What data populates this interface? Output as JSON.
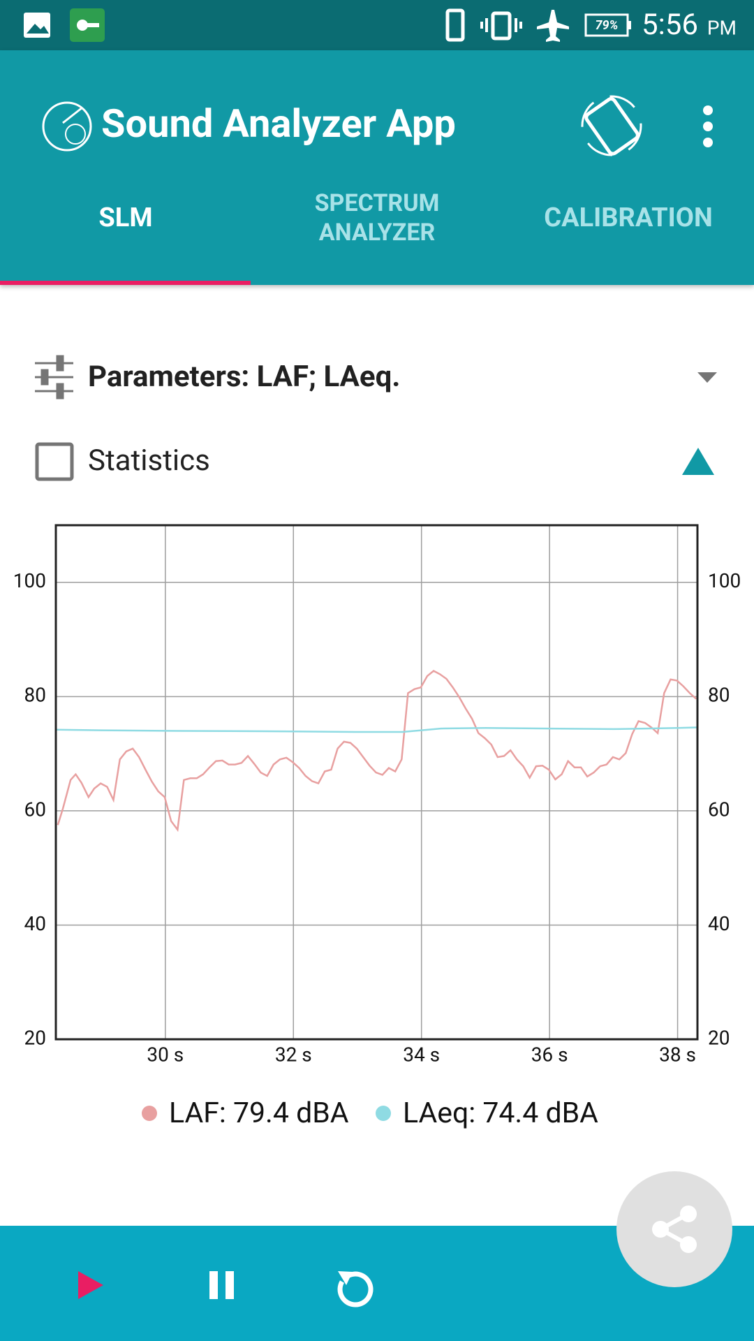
{
  "status": {
    "battery": "79%",
    "time": "5:56",
    "ampm": "PM"
  },
  "app_bar": {
    "title": "Sound Analyzer App",
    "tabs": [
      "SLM",
      "SPECTRUM ANALYZER",
      "CALIBRATION"
    ]
  },
  "parameters": "Parameters: LAF; LAeq.",
  "statistics": "Statistics",
  "chart_data": {
    "type": "line",
    "grid": true,
    "xlim": [
      28.29,
      38.31
    ],
    "xticks": [
      {
        "value": 30,
        "label": "30 s"
      },
      {
        "value": 32,
        "label": "32 s"
      },
      {
        "value": 34,
        "label": "34 s"
      },
      {
        "value": 36,
        "label": "36 s"
      },
      {
        "value": 38,
        "label": "38 s"
      }
    ],
    "ylim": [
      20,
      110
    ],
    "yticks": [
      20,
      40,
      60,
      80,
      100
    ],
    "y2lim": [
      20,
      110
    ],
    "y2ticks": [
      20,
      40,
      60,
      80,
      100
    ],
    "series": [
      {
        "name": "LAF: 79.4 dBA",
        "color": "#e8a0a0",
        "x": [
          28.32,
          28.4,
          28.52,
          28.6,
          28.69,
          28.8,
          28.89,
          28.99,
          29.09,
          29.19,
          29.29,
          29.39,
          29.49,
          29.59,
          29.69,
          29.79,
          29.89,
          29.99,
          30.09,
          30.19,
          30.29,
          30.39,
          30.49,
          30.59,
          30.69,
          30.79,
          30.89,
          30.99,
          31.09,
          31.19,
          31.29,
          31.39,
          31.49,
          31.59,
          31.69,
          31.79,
          31.89,
          31.99,
          32.09,
          32.19,
          32.29,
          32.39,
          32.49,
          32.59,
          32.69,
          32.79,
          32.89,
          32.99,
          33.09,
          33.19,
          33.29,
          33.39,
          33.49,
          33.59,
          33.69,
          33.79,
          33.89,
          33.99,
          34.09,
          34.19,
          34.29,
          34.39,
          34.49,
          34.59,
          34.69,
          34.79,
          34.89,
          34.99,
          35.09,
          35.19,
          35.29,
          35.39,
          35.49,
          35.59,
          35.69,
          35.79,
          35.89,
          35.99,
          36.09,
          36.19,
          36.29,
          36.39,
          36.49,
          36.59,
          36.69,
          36.79,
          36.89,
          36.99,
          37.09,
          37.19,
          37.29,
          37.39,
          37.49,
          37.59,
          37.69,
          37.79,
          37.89,
          37.99,
          38.09,
          38.19,
          38.29
        ],
        "values": [
          57.5,
          60.4,
          65.4,
          66.4,
          64.9,
          62.4,
          63.9,
          64.8,
          64.2,
          61.9,
          69,
          70.4,
          70.9,
          69.4,
          67.2,
          65.1,
          63.4,
          62.4,
          58.2,
          56.7,
          65.4,
          65.7,
          65.7,
          66.4,
          67.6,
          68.7,
          68.8,
          68.1,
          68.1,
          68.4,
          69.6,
          68.2,
          66.7,
          66.1,
          68.1,
          69,
          69.3,
          68.5,
          67.5,
          66.1,
          65.2,
          64.8,
          66.9,
          67.2,
          70.9,
          72.1,
          71.9,
          70.9,
          69.4,
          67.9,
          66.7,
          66.3,
          67.5,
          66.9,
          69,
          80.6,
          81.3,
          81.6,
          83.6,
          84.5,
          83.9,
          83.1,
          81.6,
          79.9,
          77.9,
          76.1,
          73.6,
          72.7,
          71.6,
          69.4,
          69.6,
          70.6,
          69,
          67.8,
          65.8,
          67.8,
          67.9,
          67.2,
          65.5,
          66.4,
          68.7,
          67.6,
          67.6,
          66,
          66.7,
          67.8,
          68.1,
          69.4,
          69,
          70.1,
          73.4,
          75.7,
          75.4,
          74.6,
          73.6,
          80.6,
          83,
          82.8,
          81.8,
          80.6,
          79.6
        ]
      },
      {
        "name": "LAeq: 74.4 dBA",
        "color": "#8fdbe3",
        "x": [
          28.3,
          29,
          30,
          31,
          32,
          33,
          33.7,
          34,
          34.3,
          35,
          36,
          37,
          37.5,
          38,
          38.3
        ],
        "values": [
          74.2,
          74.1,
          74.0,
          73.95,
          73.9,
          73.8,
          73.8,
          74.1,
          74.4,
          74.5,
          74.4,
          74.3,
          74.4,
          74.5,
          74.6
        ]
      }
    ]
  }
}
